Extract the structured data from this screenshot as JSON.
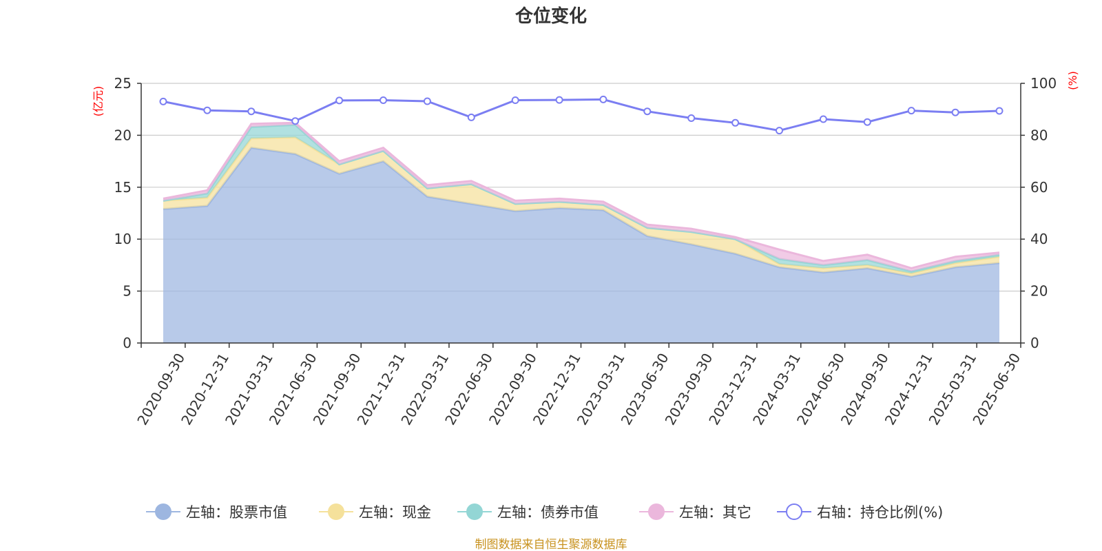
{
  "chart_data": {
    "type": "area",
    "title": "仓位变化",
    "left_axis_unit": "(亿元)",
    "right_axis_unit": "(%)",
    "ylim_left": [
      0,
      25
    ],
    "yticks_left": [
      "0",
      "5",
      "10",
      "15",
      "20",
      "25"
    ],
    "ylim_right": [
      0,
      100
    ],
    "yticks_right": [
      "0",
      "20",
      "40",
      "60",
      "80",
      "100"
    ],
    "grid": true,
    "legend_position": "bottom",
    "stacked": true,
    "categories": [
      "2020-09-30",
      "2020-12-31",
      "2021-03-31",
      "2021-06-30",
      "2021-09-30",
      "2021-12-31",
      "2022-03-31",
      "2022-06-30",
      "2022-09-30",
      "2022-12-31",
      "2023-03-31",
      "2023-06-30",
      "2023-09-30",
      "2023-12-31",
      "2024-03-31",
      "2024-06-30",
      "2024-09-30",
      "2024-12-31",
      "2025-03-31",
      "2025-06-30"
    ],
    "series": [
      {
        "name": "左轴：股票市值",
        "axis": "left",
        "color": "#9db6e0",
        "values": [
          12.9,
          13.2,
          18.8,
          18.2,
          16.3,
          17.5,
          14.1,
          13.4,
          12.7,
          13.0,
          12.8,
          10.3,
          9.5,
          8.6,
          7.3,
          6.8,
          7.2,
          6.4,
          7.3,
          7.7
        ]
      },
      {
        "name": "左轴：现金",
        "axis": "left",
        "color": "#f5e19b",
        "values": [
          0.8,
          0.8,
          0.9,
          1.6,
          0.9,
          1.0,
          0.8,
          1.9,
          0.7,
          0.6,
          0.5,
          0.8,
          1.2,
          1.4,
          0.3,
          0.4,
          0.3,
          0.3,
          0.4,
          0.6
        ]
      },
      {
        "name": "左轴：债券市值",
        "axis": "left",
        "color": "#93d6d5",
        "values": [
          0.0,
          0.4,
          1.1,
          1.2,
          0.0,
          0.0,
          0.0,
          0.0,
          0.0,
          0.0,
          0.0,
          0.0,
          0.0,
          0.0,
          0.5,
          0.3,
          0.5,
          0.2,
          0.2,
          0.2
        ]
      },
      {
        "name": "左轴：其它",
        "axis": "left",
        "color": "#ebb7dc",
        "values": [
          0.2,
          0.3,
          0.3,
          0.2,
          0.3,
          0.3,
          0.3,
          0.3,
          0.3,
          0.3,
          0.3,
          0.3,
          0.3,
          0.2,
          0.9,
          0.4,
          0.5,
          0.3,
          0.4,
          0.2
        ]
      },
      {
        "name": "右轴：持仓比例(%)",
        "axis": "right",
        "color": "#7b7ef2",
        "values": [
          93.0,
          89.6,
          89.2,
          85.5,
          93.4,
          93.5,
          93.1,
          86.9,
          93.5,
          93.6,
          93.8,
          89.2,
          86.6,
          84.8,
          81.8,
          86.2,
          85.1,
          89.5,
          88.8,
          89.4
        ]
      }
    ],
    "source": "制图数据来自恒生聚源数据库"
  }
}
